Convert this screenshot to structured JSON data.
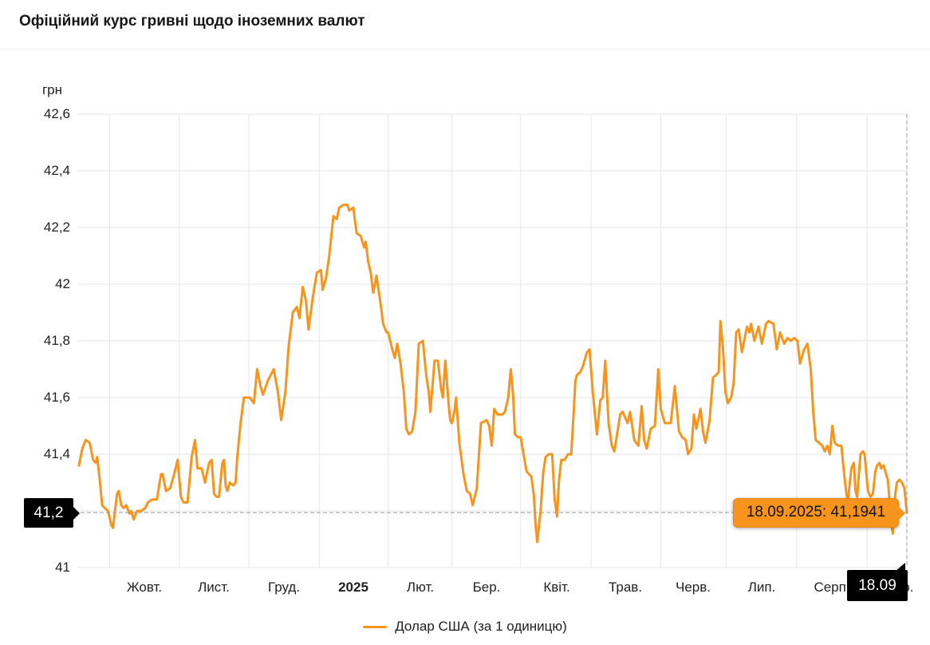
{
  "header": {
    "title": "Офіційний курс гривні щодо іноземних валют"
  },
  "colors": {
    "line": "#f7941e",
    "grid": "#e6e6e6",
    "crosshair": "#999999",
    "marker_bg": "#000000",
    "marker_text": "#ffffff",
    "tooltip_bg": "#f7941e",
    "tooltip_text": "#141414"
  },
  "chart_data": {
    "type": "line",
    "unit_label": "грн",
    "ylim": [
      41,
      42.6
    ],
    "grid": true,
    "legend_position": "bottom-center",
    "y_ticks": [
      {
        "value": 42.6,
        "label": "42,6"
      },
      {
        "value": 42.4,
        "label": "42,4"
      },
      {
        "value": 42.2,
        "label": "42,2"
      },
      {
        "value": 42.0,
        "label": "42"
      },
      {
        "value": 41.8,
        "label": "41,8"
      },
      {
        "value": 41.6,
        "label": "41,6"
      },
      {
        "value": 41.4,
        "label": "41,4"
      },
      {
        "value": 41.2,
        "label": "41,2"
      },
      {
        "value": 41.0,
        "label": "41"
      }
    ],
    "x_ticks": [
      {
        "label": "Жовт.",
        "t_line": 0.038,
        "t_center": 0.08
      },
      {
        "label": "Лист.",
        "t_line": 0.122,
        "t_center": 0.164
      },
      {
        "label": "Груд.",
        "t_line": 0.206,
        "t_center": 0.248
      },
      {
        "label": "2025",
        "t_line": 0.291,
        "t_center": 0.332,
        "bold": true
      },
      {
        "label": "Лют.",
        "t_line": 0.374,
        "t_center": 0.413
      },
      {
        "label": "Бер.",
        "t_line": 0.451,
        "t_center": 0.493
      },
      {
        "label": "Квіт.",
        "t_line": 0.534,
        "t_center": 0.577
      },
      {
        "label": "Трав.",
        "t_line": 0.619,
        "t_center": 0.66
      },
      {
        "label": "Черв.",
        "t_line": 0.703,
        "t_center": 0.742
      },
      {
        "label": "Лип.",
        "t_line": 0.782,
        "t_center": 0.825
      },
      {
        "label": "Серп.",
        "t_line": 0.867,
        "t_center": 0.91
      },
      {
        "label": "Вер.",
        "t_line": 0.952,
        "t_center": 0.991
      }
    ],
    "crosshair": {
      "t": 1.0,
      "value": 41.1941,
      "y_label": "41,2",
      "x_label": "18.09",
      "tooltip": "18.09.2025: 41,1941"
    },
    "series": [
      {
        "name": "Долар США (за 1 одиницю)",
        "color": "#f7941e",
        "points": [
          [
            0.001,
            41.36
          ],
          [
            0.005,
            41.42
          ],
          [
            0.009,
            41.45
          ],
          [
            0.014,
            41.44
          ],
          [
            0.018,
            41.38
          ],
          [
            0.021,
            41.37
          ],
          [
            0.023,
            41.39
          ],
          [
            0.026,
            41.31
          ],
          [
            0.029,
            41.22
          ],
          [
            0.032,
            41.21
          ],
          [
            0.036,
            41.2
          ],
          [
            0.04,
            41.15
          ],
          [
            0.042,
            41.14
          ],
          [
            0.047,
            41.26
          ],
          [
            0.049,
            41.27
          ],
          [
            0.052,
            41.22
          ],
          [
            0.055,
            41.21
          ],
          [
            0.058,
            41.22
          ],
          [
            0.062,
            41.19
          ],
          [
            0.064,
            41.2
          ],
          [
            0.067,
            41.17
          ],
          [
            0.071,
            41.2
          ],
          [
            0.076,
            41.2
          ],
          [
            0.081,
            41.21
          ],
          [
            0.084,
            41.23
          ],
          [
            0.089,
            41.24
          ],
          [
            0.095,
            41.24
          ],
          [
            0.1,
            41.33
          ],
          [
            0.102,
            41.33
          ],
          [
            0.106,
            41.27
          ],
          [
            0.111,
            41.28
          ],
          [
            0.115,
            41.32
          ],
          [
            0.12,
            41.38
          ],
          [
            0.124,
            41.25
          ],
          [
            0.127,
            41.23
          ],
          [
            0.132,
            41.23
          ],
          [
            0.137,
            41.39
          ],
          [
            0.141,
            41.45
          ],
          [
            0.144,
            41.35
          ],
          [
            0.149,
            41.35
          ],
          [
            0.153,
            41.3
          ],
          [
            0.158,
            41.37
          ],
          [
            0.161,
            41.38
          ],
          [
            0.164,
            41.26
          ],
          [
            0.167,
            41.25
          ],
          [
            0.17,
            41.25
          ],
          [
            0.174,
            41.37
          ],
          [
            0.176,
            41.38
          ],
          [
            0.178,
            41.29
          ],
          [
            0.18,
            41.27
          ],
          [
            0.183,
            41.3
          ],
          [
            0.187,
            41.29
          ],
          [
            0.19,
            41.3
          ],
          [
            0.192,
            41.39
          ],
          [
            0.196,
            41.51
          ],
          [
            0.2,
            41.6
          ],
          [
            0.207,
            41.6
          ],
          [
            0.212,
            41.58
          ],
          [
            0.216,
            41.7
          ],
          [
            0.22,
            41.64
          ],
          [
            0.223,
            41.61
          ],
          [
            0.229,
            41.66
          ],
          [
            0.236,
            41.7
          ],
          [
            0.241,
            41.62
          ],
          [
            0.245,
            41.52
          ],
          [
            0.25,
            41.62
          ],
          [
            0.254,
            41.78
          ],
          [
            0.259,
            41.9
          ],
          [
            0.264,
            41.92
          ],
          [
            0.267,
            41.88
          ],
          [
            0.271,
            41.99
          ],
          [
            0.275,
            41.94
          ],
          [
            0.278,
            41.84
          ],
          [
            0.283,
            41.95
          ],
          [
            0.288,
            42.04
          ],
          [
            0.293,
            42.05
          ],
          [
            0.295,
            41.98
          ],
          [
            0.299,
            42.02
          ],
          [
            0.303,
            42.1
          ],
          [
            0.308,
            42.24
          ],
          [
            0.312,
            42.23
          ],
          [
            0.315,
            42.27
          ],
          [
            0.32,
            42.28
          ],
          [
            0.325,
            42.28
          ],
          [
            0.327,
            42.26
          ],
          [
            0.332,
            42.27
          ],
          [
            0.336,
            42.18
          ],
          [
            0.341,
            42.17
          ],
          [
            0.345,
            42.13
          ],
          [
            0.347,
            42.15
          ],
          [
            0.35,
            42.08
          ],
          [
            0.353,
            42.04
          ],
          [
            0.356,
            41.97
          ],
          [
            0.36,
            42.03
          ],
          [
            0.365,
            41.93
          ],
          [
            0.368,
            41.86
          ],
          [
            0.372,
            41.83
          ],
          [
            0.374,
            41.83
          ],
          [
            0.379,
            41.77
          ],
          [
            0.382,
            41.74
          ],
          [
            0.385,
            41.79
          ],
          [
            0.389,
            41.72
          ],
          [
            0.393,
            41.62
          ],
          [
            0.396,
            41.49
          ],
          [
            0.399,
            41.47
          ],
          [
            0.403,
            41.48
          ],
          [
            0.407,
            41.55
          ],
          [
            0.411,
            41.79
          ],
          [
            0.416,
            41.8
          ],
          [
            0.42,
            41.68
          ],
          [
            0.423,
            41.62
          ],
          [
            0.425,
            41.55
          ],
          [
            0.43,
            41.73
          ],
          [
            0.434,
            41.73
          ],
          [
            0.438,
            41.63
          ],
          [
            0.44,
            41.6
          ],
          [
            0.443,
            41.73
          ],
          [
            0.447,
            41.58
          ],
          [
            0.449,
            41.52
          ],
          [
            0.451,
            41.51
          ],
          [
            0.454,
            41.55
          ],
          [
            0.456,
            41.6
          ],
          [
            0.46,
            41.44
          ],
          [
            0.465,
            41.33
          ],
          [
            0.469,
            41.27
          ],
          [
            0.473,
            41.26
          ],
          [
            0.476,
            41.22
          ],
          [
            0.481,
            41.28
          ],
          [
            0.486,
            41.51
          ],
          [
            0.493,
            41.52
          ],
          [
            0.496,
            41.5
          ],
          [
            0.499,
            41.43
          ],
          [
            0.502,
            41.56
          ],
          [
            0.506,
            41.54
          ],
          [
            0.512,
            41.54
          ],
          [
            0.515,
            41.55
          ],
          [
            0.519,
            41.6
          ],
          [
            0.522,
            41.7
          ],
          [
            0.525,
            41.6
          ],
          [
            0.527,
            41.47
          ],
          [
            0.531,
            41.46
          ],
          [
            0.534,
            41.46
          ],
          [
            0.538,
            41.39
          ],
          [
            0.541,
            41.34
          ],
          [
            0.544,
            41.33
          ],
          [
            0.547,
            41.32
          ],
          [
            0.55,
            41.25
          ],
          [
            0.552,
            41.15
          ],
          [
            0.554,
            41.09
          ],
          [
            0.558,
            41.2
          ],
          [
            0.561,
            41.33
          ],
          [
            0.564,
            41.39
          ],
          [
            0.568,
            41.4
          ],
          [
            0.572,
            41.4
          ],
          [
            0.575,
            41.24
          ],
          [
            0.578,
            41.18
          ],
          [
            0.58,
            41.3
          ],
          [
            0.583,
            41.38
          ],
          [
            0.587,
            41.38
          ],
          [
            0.591,
            41.4
          ],
          [
            0.595,
            41.4
          ],
          [
            0.598,
            41.55
          ],
          [
            0.6,
            41.66
          ],
          [
            0.602,
            41.68
          ],
          [
            0.606,
            41.69
          ],
          [
            0.609,
            41.71
          ],
          [
            0.614,
            41.76
          ],
          [
            0.617,
            41.77
          ],
          [
            0.621,
            41.62
          ],
          [
            0.626,
            41.47
          ],
          [
            0.63,
            41.59
          ],
          [
            0.633,
            41.6
          ],
          [
            0.636,
            41.73
          ],
          [
            0.64,
            41.51
          ],
          [
            0.644,
            41.43
          ],
          [
            0.647,
            41.41
          ],
          [
            0.652,
            41.5
          ],
          [
            0.654,
            41.54
          ],
          [
            0.657,
            41.55
          ],
          [
            0.663,
            41.51
          ],
          [
            0.666,
            41.55
          ],
          [
            0.671,
            41.45
          ],
          [
            0.676,
            41.43
          ],
          [
            0.68,
            41.57
          ],
          [
            0.683,
            41.45
          ],
          [
            0.686,
            41.42
          ],
          [
            0.691,
            41.49
          ],
          [
            0.696,
            41.5
          ],
          [
            0.7,
            41.7
          ],
          [
            0.703,
            41.56
          ],
          [
            0.708,
            41.51
          ],
          [
            0.715,
            41.51
          ],
          [
            0.72,
            41.64
          ],
          [
            0.725,
            41.48
          ],
          [
            0.729,
            41.46
          ],
          [
            0.733,
            41.45
          ],
          [
            0.736,
            41.4
          ],
          [
            0.74,
            41.42
          ],
          [
            0.743,
            41.54
          ],
          [
            0.746,
            41.49
          ],
          [
            0.751,
            41.56
          ],
          [
            0.754,
            41.48
          ],
          [
            0.757,
            41.44
          ],
          [
            0.762,
            41.52
          ],
          [
            0.766,
            41.67
          ],
          [
            0.77,
            41.68
          ],
          [
            0.773,
            41.69
          ],
          [
            0.775,
            41.87
          ],
          [
            0.778,
            41.78
          ],
          [
            0.781,
            41.62
          ],
          [
            0.784,
            41.58
          ],
          [
            0.788,
            41.6
          ],
          [
            0.791,
            41.65
          ],
          [
            0.794,
            41.83
          ],
          [
            0.797,
            41.84
          ],
          [
            0.801,
            41.76
          ],
          [
            0.807,
            41.85
          ],
          [
            0.81,
            41.83
          ],
          [
            0.812,
            41.86
          ],
          [
            0.816,
            41.8
          ],
          [
            0.821,
            41.85
          ],
          [
            0.825,
            41.79
          ],
          [
            0.83,
            41.86
          ],
          [
            0.833,
            41.87
          ],
          [
            0.839,
            41.86
          ],
          [
            0.843,
            41.77
          ],
          [
            0.847,
            41.83
          ],
          [
            0.852,
            41.79
          ],
          [
            0.856,
            41.81
          ],
          [
            0.86,
            41.8
          ],
          [
            0.864,
            41.81
          ],
          [
            0.868,
            41.8
          ],
          [
            0.871,
            41.72
          ],
          [
            0.876,
            41.77
          ],
          [
            0.88,
            41.79
          ],
          [
            0.884,
            41.7
          ],
          [
            0.887,
            41.55
          ],
          [
            0.89,
            41.45
          ],
          [
            0.894,
            41.44
          ],
          [
            0.898,
            41.43
          ],
          [
            0.901,
            41.41
          ],
          [
            0.904,
            41.43
          ],
          [
            0.907,
            41.4
          ],
          [
            0.91,
            41.5
          ],
          [
            0.913,
            41.44
          ],
          [
            0.917,
            41.43
          ],
          [
            0.921,
            41.43
          ],
          [
            0.924,
            41.34
          ],
          [
            0.927,
            41.26
          ],
          [
            0.929,
            41.24
          ],
          [
            0.933,
            41.35
          ],
          [
            0.936,
            41.37
          ],
          [
            0.938,
            41.27
          ],
          [
            0.94,
            41.25
          ],
          [
            0.944,
            41.4
          ],
          [
            0.947,
            41.41
          ],
          [
            0.949,
            41.4
          ],
          [
            0.953,
            41.27
          ],
          [
            0.956,
            41.25
          ],
          [
            0.959,
            41.26
          ],
          [
            0.962,
            41.34
          ],
          [
            0.964,
            41.36
          ],
          [
            0.967,
            41.37
          ],
          [
            0.969,
            41.35
          ],
          [
            0.972,
            41.36
          ],
          [
            0.975,
            41.33
          ],
          [
            0.977,
            41.31
          ],
          [
            0.979,
            41.24
          ],
          [
            0.981,
            41.16
          ],
          [
            0.983,
            41.12
          ],
          [
            0.986,
            41.26
          ],
          [
            0.988,
            41.3
          ],
          [
            0.991,
            41.31
          ],
          [
            0.994,
            41.3
          ],
          [
            0.997,
            41.28
          ],
          [
            1.0,
            41.1941
          ]
        ]
      }
    ]
  }
}
